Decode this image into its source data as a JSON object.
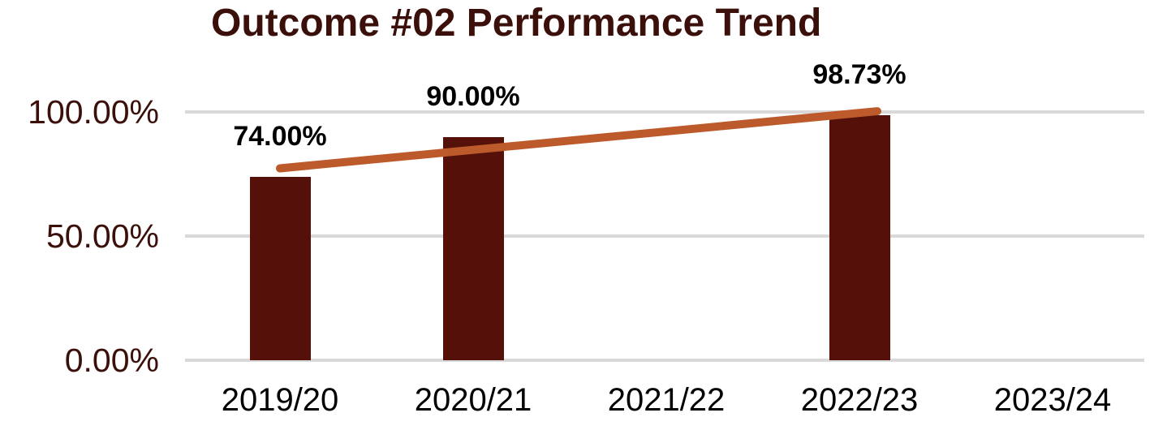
{
  "colors": {
    "background": "#FFFFFF",
    "title_text": "#3B0F0A",
    "y_tick_text": "#3B0F0A",
    "x_tick_text": "#000000",
    "data_label_text": "#000000",
    "gridline": "#D9D9D9",
    "bar_fill": "#551109",
    "trendline": "#BC5A2B"
  },
  "chart_data": {
    "type": "bar",
    "title": "Outcome #02 Performance Trend",
    "xlabel": "",
    "ylabel": "",
    "categories": [
      "2019/20",
      "2020/21",
      "2021/22",
      "2022/23",
      "2023/24"
    ],
    "series": [
      {
        "name": "Performance",
        "type": "bar",
        "color": "#551109",
        "values": [
          74.0,
          90.0,
          null,
          98.73,
          null
        ],
        "data_labels": [
          "74.00%",
          "90.00%",
          null,
          "98.73%",
          null
        ]
      },
      {
        "name": "Trendline",
        "type": "line",
        "color": "#BC5A2B",
        "start": {
          "category": "2019/20",
          "value": 77.3
        },
        "end": {
          "category": "2022/23",
          "value": 100.3
        }
      }
    ],
    "y_ticks": [
      {
        "label": "0.00%",
        "value": 0
      },
      {
        "label": "50.00%",
        "value": 50
      },
      {
        "label": "100.00%",
        "value": 100
      }
    ],
    "ylim": [
      0,
      100
    ],
    "grid": "horizontal",
    "legend": "none"
  }
}
